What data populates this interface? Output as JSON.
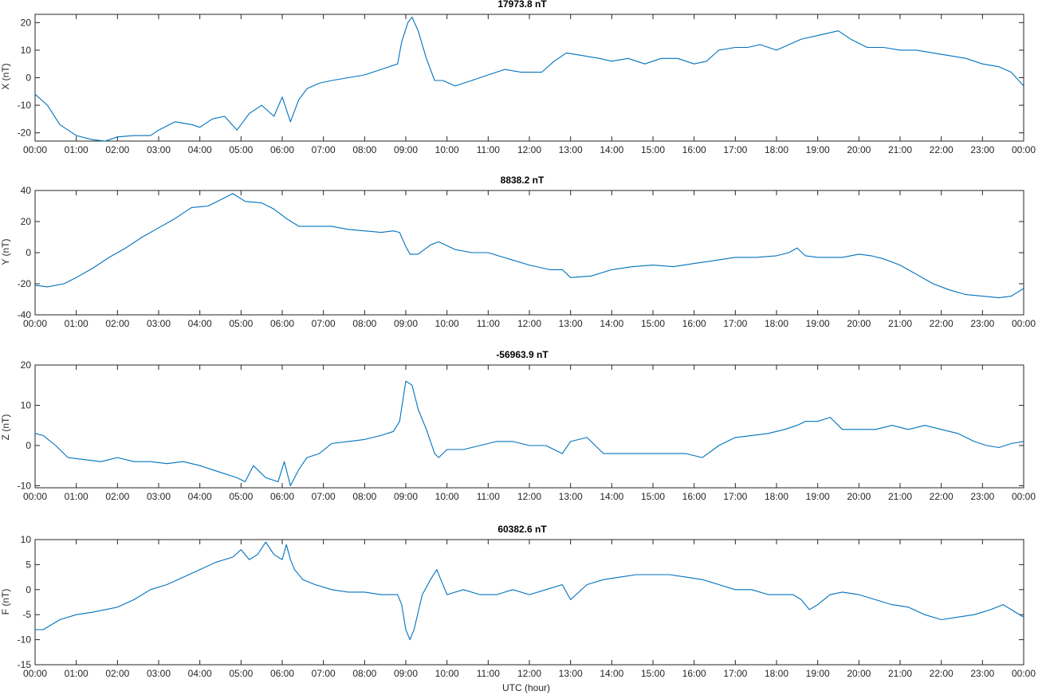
{
  "figure": {
    "xlabel": "UTC (hour)"
  },
  "chart_data": [
    {
      "type": "line",
      "title": "17973.8 nT",
      "ylabel": "X (nT)",
      "xlim": [
        0,
        24
      ],
      "ylim": [
        -23,
        23
      ],
      "yticks": [
        -20,
        -10,
        0,
        10,
        20
      ],
      "xtick_labels": [
        "00:00",
        "01:00",
        "02:00",
        "03:00",
        "04:00",
        "05:00",
        "06:00",
        "07:00",
        "08:00",
        "09:00",
        "10:00",
        "11:00",
        "12:00",
        "13:00",
        "14:00",
        "15:00",
        "16:00",
        "17:00",
        "18:00",
        "19:00",
        "20:00",
        "21:00",
        "22:00",
        "23:00",
        "00:00"
      ],
      "color": "#0072BD",
      "x": [
        0,
        0.3,
        0.6,
        1,
        1.4,
        1.7,
        2,
        2.4,
        2.8,
        3,
        3.4,
        3.8,
        4,
        4.3,
        4.6,
        4.9,
        5.2,
        5.5,
        5.8,
        6,
        6.2,
        6.4,
        6.6,
        6.9,
        7.2,
        7.6,
        8,
        8.4,
        8.8,
        8.9,
        9.05,
        9.15,
        9.3,
        9.5,
        9.7,
        9.9,
        10.2,
        10.6,
        11,
        11.4,
        11.8,
        12,
        12.3,
        12.6,
        12.9,
        13.3,
        13.7,
        14,
        14.4,
        14.8,
        15.2,
        15.6,
        16,
        16.3,
        16.6,
        17,
        17.3,
        17.6,
        18,
        18.3,
        18.6,
        18.9,
        19.2,
        19.5,
        19.8,
        20.2,
        20.6,
        21,
        21.4,
        21.8,
        22.2,
        22.6,
        23,
        23.4,
        23.7,
        24
      ],
      "y": [
        -6,
        -10,
        -17,
        -21,
        -22.5,
        -23,
        -21.5,
        -21,
        -21,
        -19,
        -16,
        -17,
        -18,
        -15,
        -14,
        -19,
        -13,
        -10,
        -14,
        -7,
        -16,
        -8,
        -4,
        -2,
        -1,
        0,
        1,
        3,
        5,
        13,
        20,
        22,
        17,
        7,
        -1,
        -1,
        -3,
        -1,
        1,
        3,
        2,
        2,
        2,
        6,
        9,
        8,
        7,
        6,
        7,
        5,
        7,
        7,
        5,
        6,
        10,
        11,
        11,
        12,
        10,
        12,
        14,
        15,
        16,
        17,
        14,
        11,
        11,
        10,
        10,
        9,
        8,
        7,
        5,
        4,
        2,
        -3
      ]
    },
    {
      "type": "line",
      "title": "8838.2 nT",
      "ylabel": "Y (nT)",
      "xlim": [
        0,
        24
      ],
      "ylim": [
        -40,
        40
      ],
      "yticks": [
        -40,
        -20,
        0,
        20,
        40
      ],
      "xtick_labels": [
        "00:00",
        "01:00",
        "02:00",
        "03:00",
        "04:00",
        "05:00",
        "06:00",
        "07:00",
        "08:00",
        "09:00",
        "10:00",
        "11:00",
        "12:00",
        "13:00",
        "14:00",
        "15:00",
        "16:00",
        "17:00",
        "18:00",
        "19:00",
        "20:00",
        "21:00",
        "22:00",
        "23:00",
        "00:00"
      ],
      "color": "#0072BD",
      "x": [
        0,
        0.3,
        0.7,
        1,
        1.4,
        1.8,
        2.2,
        2.6,
        3,
        3.4,
        3.8,
        4.2,
        4.5,
        4.8,
        5.1,
        5.5,
        5.8,
        6.1,
        6.4,
        6.8,
        7.2,
        7.6,
        8,
        8.4,
        8.7,
        8.85,
        9,
        9.1,
        9.3,
        9.6,
        9.8,
        10.2,
        10.6,
        11,
        11.5,
        12,
        12.5,
        12.8,
        13,
        13.5,
        14,
        14.5,
        15,
        15.5,
        16,
        16.5,
        17,
        17.5,
        18,
        18.3,
        18.5,
        18.7,
        19,
        19.3,
        19.6,
        20,
        20.3,
        20.6,
        21,
        21.4,
        21.8,
        22.2,
        22.6,
        23,
        23.4,
        23.7,
        24
      ],
      "y": [
        -21,
        -22,
        -20,
        -16,
        -10,
        -3,
        3,
        10,
        16,
        22,
        29,
        30,
        34,
        38,
        33,
        32,
        28,
        22,
        17,
        17,
        17,
        15,
        14,
        13,
        14,
        13,
        4,
        -1,
        -1,
        5,
        7,
        2,
        0,
        0,
        -4,
        -8,
        -11,
        -11,
        -16,
        -15,
        -11,
        -9,
        -8,
        -9,
        -7,
        -5,
        -3,
        -3,
        -2,
        0,
        3,
        -2,
        -3,
        -3,
        -3,
        -1,
        -2,
        -4,
        -8,
        -14,
        -20,
        -24,
        -27,
        -28,
        -29,
        -28,
        -23
      ]
    },
    {
      "type": "line",
      "title": "-56963.9 nT",
      "ylabel": "Z (nT)",
      "xlim": [
        0,
        24
      ],
      "ylim": [
        -10.5,
        20
      ],
      "yticks": [
        -10,
        0,
        10,
        20
      ],
      "xtick_labels": [
        "00:00",
        "01:00",
        "02:00",
        "03:00",
        "04:00",
        "05:00",
        "06:00",
        "07:00",
        "08:00",
        "09:00",
        "10:00",
        "11:00",
        "12:00",
        "13:00",
        "14:00",
        "15:00",
        "16:00",
        "17:00",
        "18:00",
        "19:00",
        "20:00",
        "21:00",
        "22:00",
        "23:00",
        "00:00"
      ],
      "color": "#0072BD",
      "x": [
        0,
        0.2,
        0.5,
        0.8,
        1.2,
        1.6,
        2,
        2.4,
        2.8,
        3.2,
        3.6,
        4,
        4.3,
        4.6,
        4.9,
        5.1,
        5.3,
        5.6,
        5.9,
        6.05,
        6.2,
        6.4,
        6.6,
        6.9,
        7.2,
        7.6,
        8,
        8.4,
        8.7,
        8.85,
        9,
        9.15,
        9.3,
        9.5,
        9.7,
        9.8,
        10,
        10.4,
        10.8,
        11.2,
        11.6,
        12,
        12.4,
        12.8,
        13,
        13.4,
        13.8,
        14.2,
        14.6,
        15,
        15.4,
        15.8,
        16.2,
        16.6,
        17,
        17.4,
        17.8,
        18.2,
        18.5,
        18.7,
        19,
        19.3,
        19.6,
        20,
        20.4,
        20.8,
        21.2,
        21.6,
        22,
        22.4,
        22.8,
        23.1,
        23.4,
        23.7,
        24
      ],
      "y": [
        3,
        2.5,
        0,
        -3,
        -3.5,
        -4,
        -3,
        -4,
        -4,
        -4.5,
        -4,
        -5,
        -6,
        -7,
        -8,
        -9,
        -5,
        -8,
        -9,
        -4,
        -10,
        -6,
        -3,
        -2,
        0.5,
        1,
        1.5,
        2.5,
        3.5,
        6,
        16,
        15,
        9,
        4,
        -2,
        -3,
        -1,
        -1,
        0,
        1,
        1,
        0,
        0,
        -2,
        1,
        2,
        -2,
        -2,
        -2,
        -2,
        -2,
        -2,
        -3,
        0,
        2,
        2.5,
        3,
        4,
        5,
        6,
        6,
        7,
        4,
        4,
        4,
        5,
        4,
        5,
        4,
        3,
        1,
        0,
        -0.5,
        0.5,
        1
      ]
    },
    {
      "type": "line",
      "title": "60382.6 nT",
      "ylabel": "F (nT)",
      "xlim": [
        0,
        24
      ],
      "ylim": [
        -15,
        10
      ],
      "yticks": [
        -15,
        -10,
        -5,
        0,
        5,
        10
      ],
      "xtick_labels": [
        "00:00",
        "01:00",
        "02:00",
        "03:00",
        "04:00",
        "05:00",
        "06:00",
        "07:00",
        "08:00",
        "09:00",
        "10:00",
        "11:00",
        "12:00",
        "13:00",
        "14:00",
        "15:00",
        "16:00",
        "17:00",
        "18:00",
        "19:00",
        "20:00",
        "21:00",
        "22:00",
        "23:00",
        "00:00"
      ],
      "color": "#0072BD",
      "x": [
        0,
        0.2,
        0.6,
        1,
        1.4,
        2,
        2.4,
        2.8,
        3.2,
        3.6,
        4,
        4.4,
        4.8,
        5,
        5.2,
        5.4,
        5.6,
        5.8,
        6,
        6.1,
        6.2,
        6.3,
        6.5,
        6.8,
        7.2,
        7.6,
        8,
        8.4,
        8.8,
        8.9,
        9,
        9.1,
        9.2,
        9.4,
        9.6,
        9.75,
        10,
        10.4,
        10.8,
        11.2,
        11.6,
        12,
        12.4,
        12.8,
        13,
        13.4,
        13.8,
        14.2,
        14.6,
        15,
        15.4,
        15.8,
        16.2,
        16.6,
        17,
        17.4,
        17.8,
        18.2,
        18.4,
        18.6,
        18.8,
        19,
        19.3,
        19.6,
        20,
        20.4,
        20.8,
        21.2,
        21.6,
        22,
        22.4,
        22.8,
        23.2,
        23.5,
        23.8,
        24
      ],
      "y": [
        -8,
        -8,
        -6,
        -5,
        -4.5,
        -3.5,
        -2,
        0,
        1,
        2.5,
        4,
        5.5,
        6.5,
        8,
        6,
        7,
        9.5,
        7,
        6,
        9,
        6,
        4,
        2,
        1,
        0,
        -0.5,
        -0.5,
        -1,
        -1,
        -3,
        -8,
        -10,
        -8,
        -1,
        2,
        4,
        -1,
        0,
        -1,
        -1,
        0,
        -1,
        0,
        1,
        -2,
        1,
        2,
        2.5,
        3,
        3,
        3,
        2.5,
        2,
        1,
        0,
        0,
        -1,
        -1,
        -1,
        -2,
        -4,
        -3,
        -1,
        -0.5,
        -1,
        -2,
        -3,
        -3.5,
        -5,
        -6,
        -5.5,
        -5,
        -4,
        -3,
        -4.5,
        -5.5
      ]
    }
  ]
}
